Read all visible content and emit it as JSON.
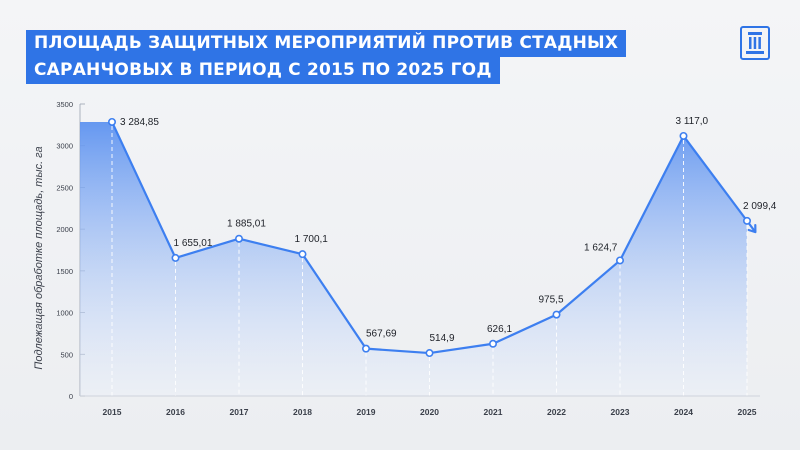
{
  "title": {
    "line1": "ПЛОЩАДЬ ЗАЩИТНЫХ МЕРОПРИЯТИЙ ПРОТИВ СТАДНЫХ",
    "line2": "САРАНЧОВЫХ В ПЕРИОД С 2015 ПО 2025 ГОД"
  },
  "logo": {
    "icon": "building-emblem-icon",
    "color": "#2f74e6"
  },
  "colors": {
    "accent": "#2f74e6",
    "line": "#3d7ff0",
    "area_top": "#5e93f0",
    "area_bottom": "#eaf0fb",
    "axis_text": "#3a3f4a",
    "label_text": "#1e2128"
  },
  "chart_data": {
    "type": "area",
    "ylabel": "Подлежащая обработке площадь, тыс. га",
    "xlabel": "",
    "ylim": [
      0,
      3500
    ],
    "yticks": [
      "0",
      "500",
      "1000",
      "1500",
      "2000",
      "2500",
      "3000",
      "3500"
    ],
    "categories": [
      "2015",
      "2016",
      "2017",
      "2018",
      "2019",
      "2020",
      "2021",
      "2022",
      "2023",
      "2024",
      "2025"
    ],
    "values": [
      3284.85,
      1655.01,
      1885.01,
      1700.1,
      567.69,
      514.9,
      626.1,
      975.5,
      1624.7,
      3117.0,
      2099.4
    ],
    "data_labels": [
      "3 284,85",
      "1 655,01",
      "1 885,01",
      "1 700,1",
      "567,69",
      "514,9",
      "626,1",
      "975,5",
      "1 624,7",
      "3 117,0",
      "2 099,4"
    ],
    "grid": false,
    "trend_arrow_at_end": true
  }
}
